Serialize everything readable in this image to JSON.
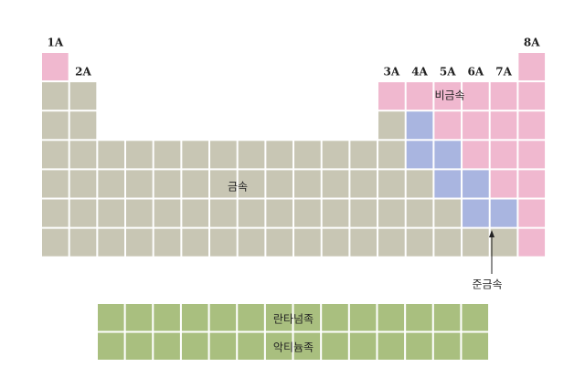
{
  "group_labels": [
    "1A",
    "2A",
    "3A",
    "4A",
    "5A",
    "6A",
    "7A",
    "8A"
  ],
  "regions": {
    "nonmetal": "비금속",
    "metal": "금속",
    "metalloid": "준금속",
    "lanthanides": "란타넘족",
    "actinides": "악티늄족"
  }
}
